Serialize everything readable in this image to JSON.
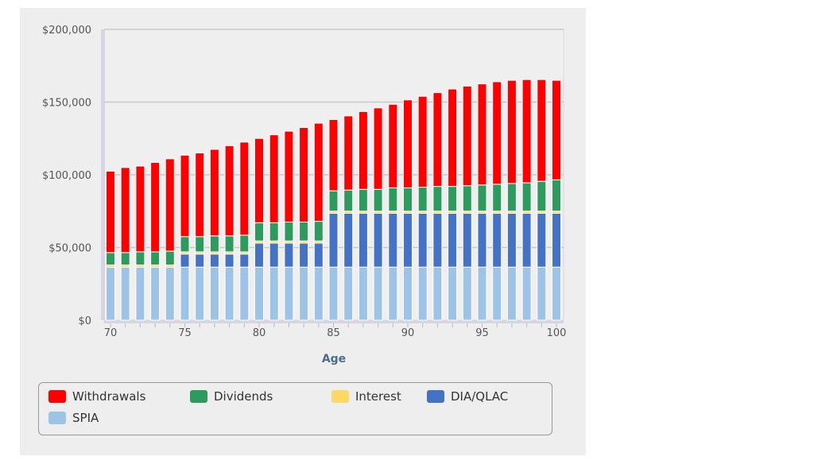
{
  "chart_data": {
    "type": "bar",
    "stacked": true,
    "xlabel": "Age",
    "ylabel": "",
    "ylim": [
      0,
      200000
    ],
    "yticks": [
      "$0",
      "$50,000",
      "$100,000",
      "$150,000",
      "$200,000"
    ],
    "ytick_values": [
      0,
      50000,
      100000,
      150000,
      200000
    ],
    "xticks": [
      70,
      75,
      80,
      85,
      90,
      95,
      100
    ],
    "grid": true,
    "legend_placement": "bottom",
    "categories": [
      70,
      71,
      72,
      73,
      74,
      75,
      76,
      77,
      78,
      79,
      80,
      81,
      82,
      83,
      84,
      85,
      86,
      87,
      88,
      89,
      90,
      91,
      92,
      93,
      94,
      95,
      96,
      97,
      98,
      99,
      100
    ],
    "series": [
      {
        "name": "SPIA",
        "color": "#9dc3e6",
        "values": [
          36500,
          36500,
          36500,
          36500,
          36500,
          36500,
          36500,
          36500,
          36500,
          36500,
          36500,
          36500,
          36500,
          36500,
          36500,
          36500,
          36500,
          36500,
          36500,
          36500,
          36500,
          36500,
          36500,
          36500,
          36500,
          36500,
          36500,
          36500,
          36500,
          36500,
          36500
        ]
      },
      {
        "name": "DIA/QLAC",
        "color": "#4472c4",
        "values": [
          0,
          0,
          0,
          0,
          0,
          9000,
          9000,
          9000,
          9000,
          9000,
          16500,
          16500,
          16500,
          16500,
          16500,
          37000,
          37000,
          37000,
          37000,
          37000,
          37000,
          37000,
          37000,
          37000,
          37000,
          37000,
          37000,
          37000,
          37000,
          37000,
          37000
        ]
      },
      {
        "name": "Interest",
        "color": "#ffd966",
        "values": [
          1500,
          1500,
          1500,
          1500,
          1500,
          1500,
          1500,
          1500,
          1500,
          1500,
          1500,
          1500,
          1500,
          1500,
          1500,
          1500,
          1500,
          1500,
          1500,
          1500,
          1500,
          1500,
          1500,
          1500,
          1500,
          1500,
          1500,
          1500,
          1500,
          1500,
          1500
        ]
      },
      {
        "name": "Dividends",
        "color": "#2e9b5e",
        "values": [
          8500,
          8500,
          9000,
          9000,
          9500,
          10500,
          10500,
          11000,
          11000,
          11500,
          12500,
          12500,
          13000,
          13000,
          13500,
          14000,
          14500,
          15000,
          15000,
          16000,
          16000,
          16500,
          17000,
          17000,
          17500,
          18000,
          18500,
          19000,
          19500,
          20500,
          21500
        ]
      },
      {
        "name": "Withdrawals",
        "color": "#ff0000",
        "values": [
          56000,
          58500,
          59000,
          61500,
          63500,
          56000,
          57500,
          59500,
          62000,
          64000,
          58000,
          60500,
          62500,
          65000,
          67500,
          49000,
          51000,
          53500,
          56000,
          57500,
          60500,
          62500,
          64500,
          67000,
          68500,
          69500,
          70500,
          71000,
          71000,
          70000,
          68500
        ]
      }
    ],
    "legend_order": [
      "Withdrawals",
      "Dividends",
      "Interest",
      "DIA/QLAC",
      "SPIA"
    ]
  }
}
